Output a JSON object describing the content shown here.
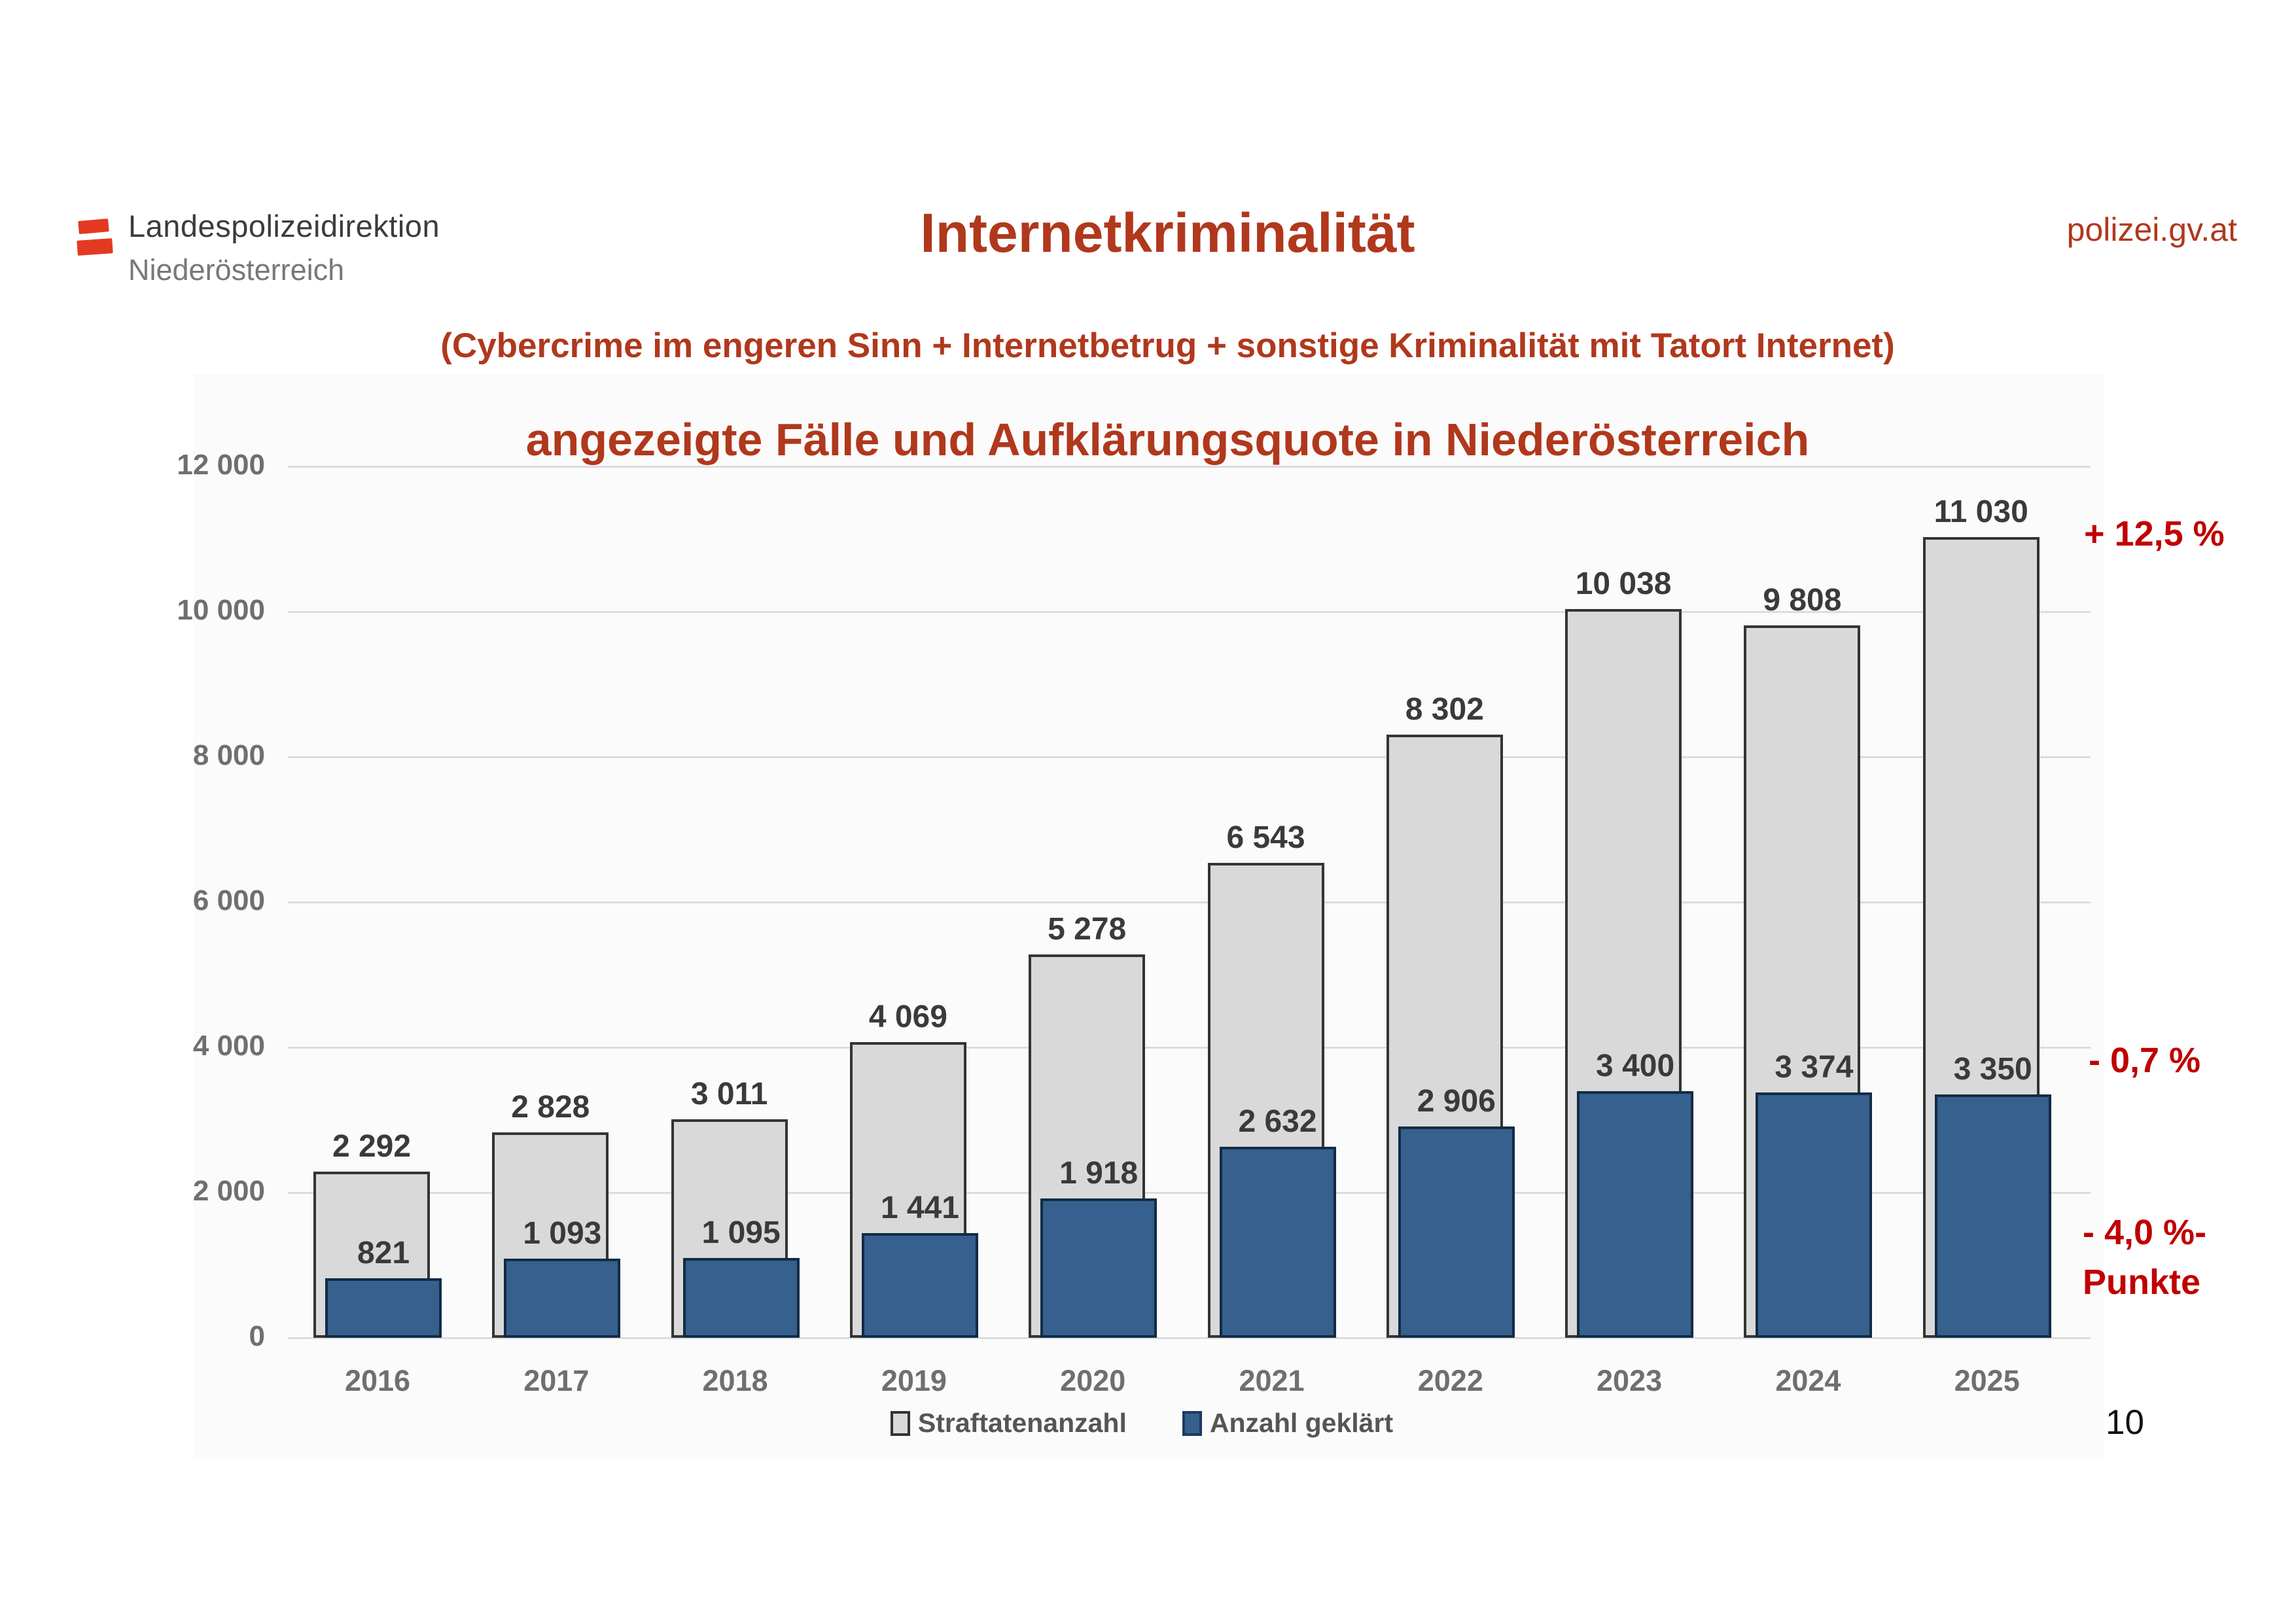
{
  "slide": {
    "logo": {
      "line1": "Landespolizeidirektion",
      "line2": "Niederösterreich"
    },
    "brand_url": "polizei.gv.at",
    "title": "Internetkriminalität",
    "subtitle": "(Cybercrime im engeren Sinn + Internetbetrug + sonstige Kriminalität mit Tatort Internet)",
    "page_number": "10",
    "annotations": {
      "straftaten_trend": "+ 12,5 %",
      "geklaert_trend": "- 0,7 %",
      "quote_trend_line1": "- 4,0 %-",
      "quote_trend_line2": "Punkte"
    },
    "colors": {
      "title_red": "#b0381c",
      "annotation_red": "#c00000",
      "bar_gray": "#d9d9d9",
      "bar_blue": "#36608d"
    }
  },
  "chart_data": {
    "type": "bar",
    "title": "angezeigte Fälle und Aufklärungsquote in Niederösterreich",
    "categories": [
      "2016",
      "2017",
      "2018",
      "2019",
      "2020",
      "2021",
      "2022",
      "2023",
      "2024",
      "2025"
    ],
    "series": [
      {
        "name": "Straftatenanzahl",
        "color": "#d9d9d9",
        "values": [
          2292,
          2828,
          3011,
          4069,
          5278,
          6543,
          8302,
          10038,
          9808,
          11030
        ],
        "labels": [
          "2 292",
          "2 828",
          "3 011",
          "4 069",
          "5 278",
          "6 543",
          "8 302",
          "10 038",
          "9 808",
          "11 030"
        ]
      },
      {
        "name": "Anzahl geklärt",
        "color": "#36608d",
        "values": [
          821,
          1093,
          1095,
          1441,
          1918,
          2632,
          2906,
          3400,
          3374,
          3350
        ],
        "labels": [
          "821",
          "1 093",
          "1 095",
          "1 441",
          "1 918",
          "2 632",
          "2 906",
          "3 400",
          "3 374",
          "3 350"
        ]
      }
    ],
    "ylim": [
      0,
      12000
    ],
    "ytick_step": 2000,
    "yticks": [
      "0",
      "2 000",
      "4 000",
      "6 000",
      "8 000",
      "10 000",
      "12 000"
    ],
    "grid": true,
    "legend_position": "bottom",
    "xlabel": "",
    "ylabel": ""
  }
}
